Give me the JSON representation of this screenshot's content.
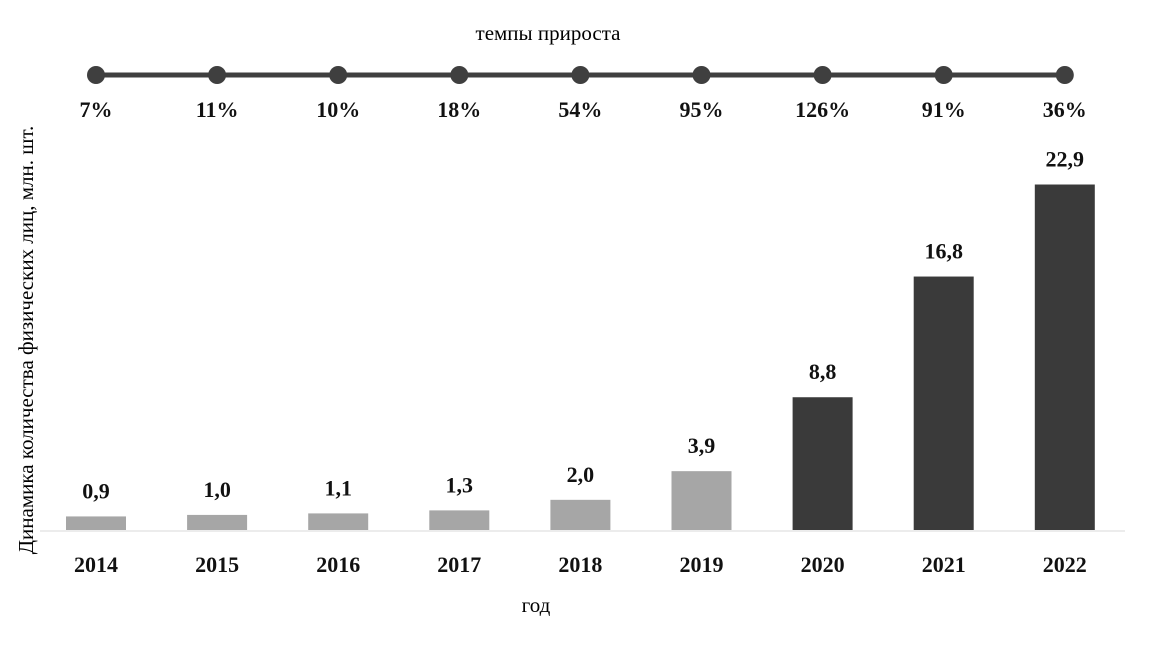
{
  "chart_data": {
    "type": "bar",
    "title": "",
    "xlabel": "год",
    "ylabel": "Динамика количества физических лиц, млн. шт.",
    "categories": [
      "2014",
      "2015",
      "2016",
      "2017",
      "2018",
      "2019",
      "2020",
      "2021",
      "2022"
    ],
    "values": [
      0.9,
      1.0,
      1.1,
      1.3,
      2.0,
      3.9,
      8.8,
      16.8,
      22.9
    ],
    "value_labels": [
      "0,9",
      "1,0",
      "1,1",
      "1,3",
      "2,0",
      "3,9",
      "8,8",
      "16,8",
      "22,9"
    ],
    "ylim": [
      0,
      23
    ],
    "grid": false,
    "bar_colors": [
      "#a6a6a6",
      "#a6a6a6",
      "#a6a6a6",
      "#a6a6a6",
      "#a6a6a6",
      "#a6a6a6",
      "#3a3a3a",
      "#3a3a3a",
      "#3a3a3a"
    ],
    "growth_rates": {
      "title": "темпы прироста",
      "labels": [
        "7%",
        "11%",
        "10%",
        "18%",
        "54%",
        "95%",
        "126%",
        "91%",
        "36%"
      ],
      "values": [
        7,
        11,
        10,
        18,
        54,
        95,
        126,
        91,
        36
      ],
      "line_color": "#3f3f3f"
    }
  }
}
